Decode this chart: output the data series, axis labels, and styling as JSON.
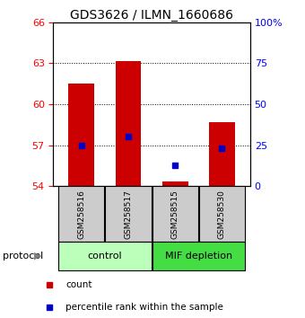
{
  "title": "GDS3626 / ILMN_1660686",
  "samples": [
    "GSM258516",
    "GSM258517",
    "GSM258515",
    "GSM258530"
  ],
  "bar_bottom": 54.0,
  "bar_tops": [
    61.5,
    63.15,
    54.35,
    58.7
  ],
  "percentile_values": [
    57.0,
    57.6,
    55.5,
    56.75
  ],
  "ylim_left": [
    54,
    66
  ],
  "yticks_left": [
    54,
    57,
    60,
    63,
    66
  ],
  "ylim_right": [
    0,
    100
  ],
  "yticks_right": [
    0,
    25,
    50,
    75,
    100
  ],
  "ytick_right_labels": [
    "0",
    "25",
    "50",
    "75",
    "100%"
  ],
  "bar_color": "#cc0000",
  "marker_color": "#0000cc",
  "protocol_groups": [
    {
      "label": "control",
      "samples": [
        0,
        1
      ],
      "color": "#bbffbb"
    },
    {
      "label": "MIF depletion",
      "samples": [
        2,
        3
      ],
      "color": "#44dd44"
    }
  ],
  "protocol_label": "protocol",
  "legend_items": [
    {
      "label": "count",
      "color": "#cc0000"
    },
    {
      "label": "percentile rank within the sample",
      "color": "#0000cc"
    }
  ],
  "label_bg_color": "#cccccc",
  "bar_width": 0.55,
  "title_fontsize": 10,
  "tick_fontsize": 8,
  "sample_fontsize": 6.5,
  "proto_fontsize": 8,
  "legend_fontsize": 7.5
}
